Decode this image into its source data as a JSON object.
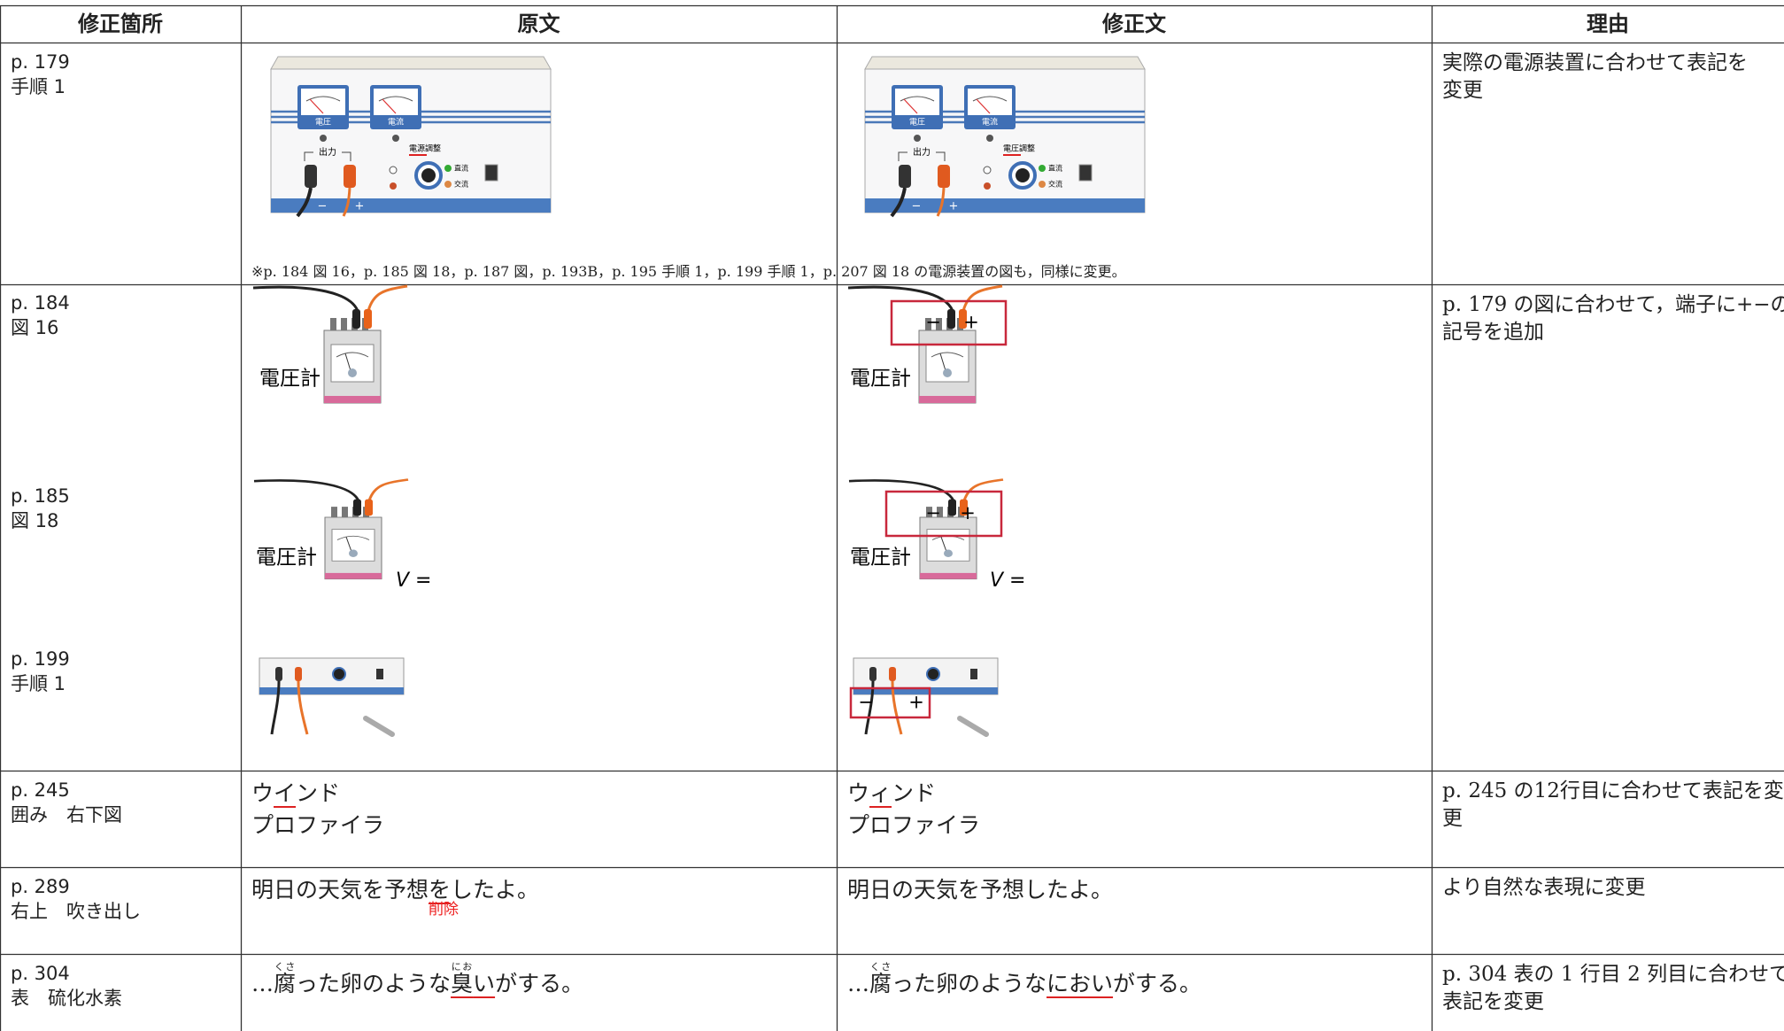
{
  "header": {
    "columns": [
      "修正箇所",
      "原文",
      "修正文",
      "理由"
    ]
  },
  "rows": [
    {
      "location": [
        "p. 179",
        "手順 1"
      ],
      "original": {
        "figure": {
          "meter_left": "電圧",
          "meter_right": "電流",
          "output": "出力",
          "knob": "電源調整",
          "dc": "直流",
          "ac": "交流",
          "minus": "−",
          "plus": "+"
        },
        "note": "※p. 184 図 16，p. 185 図 18，p. 187 図，p. 193B，p. 195 手順 1，p. 199 手順 1，p. 207 図 18 の電源装置の図も，同様に変更。"
      },
      "revised": {
        "figure": {
          "meter_left": "電圧",
          "meter_right": "電流",
          "output": "出力",
          "knob": "電圧調整",
          "dc": "直流",
          "ac": "交流",
          "minus": "−",
          "plus": "+"
        }
      },
      "reason": [
        "実際の電源装置に合わせて表記を",
        "変更"
      ]
    },
    {
      "items": [
        {
          "location": [
            "p. 184",
            "図 16"
          ],
          "original": {
            "label": "電圧計"
          },
          "revised": {
            "label": "電圧計",
            "marks": [
              "−",
              "+"
            ]
          }
        },
        {
          "location": [
            "p. 185",
            "図 18"
          ],
          "original": {
            "label": "電圧計",
            "formula": "V ="
          },
          "revised": {
            "label": "電圧計",
            "formula": "V =",
            "marks": [
              "−",
              "+"
            ]
          }
        },
        {
          "location": [
            "p. 199",
            "手順 1"
          ],
          "revised": {
            "marks": [
              "−",
              "+"
            ]
          }
        }
      ],
      "reason": [
        "p. 179 の図に合わせて，端子に+−の",
        "記号を追加"
      ]
    },
    {
      "location": [
        "p. 245",
        "囲み　右下図"
      ],
      "original": [
        [
          {
            "text": "ウ"
          },
          {
            "text": "イ",
            "mark": true
          },
          {
            "text": "ンド"
          }
        ],
        [
          {
            "text": "プロファイラ"
          }
        ]
      ],
      "revised": [
        [
          {
            "text": "ウ"
          },
          {
            "text": "ィ",
            "mark": true
          },
          {
            "text": "ンド"
          }
        ],
        [
          {
            "text": "プロファイラ"
          }
        ]
      ],
      "reason": [
        "p. 245 の12行目に合わせて表記を変",
        "更"
      ]
    },
    {
      "location": [
        "p. 289",
        "右上　吹き出し"
      ],
      "original": [
        [
          {
            "text": "明日の天気を予想"
          },
          {
            "text": "を",
            "mark": true,
            "note": "削除"
          },
          {
            "text": "したよ。"
          }
        ]
      ],
      "revised": [
        [
          {
            "text": "明日の天気を予想したよ。"
          }
        ]
      ],
      "reason": [
        "より自然な表現に変更"
      ]
    },
    {
      "location": [
        "p. 304",
        "表　硫化水素"
      ],
      "original": [
        [
          {
            "text": "…"
          },
          {
            "text": "腐",
            "ruby": "くさ"
          },
          {
            "text": "った卵のような"
          },
          {
            "text": "臭",
            "ruby": "にお",
            "mark": true
          },
          {
            "text": "い",
            "mark": true
          },
          {
            "text": "がする。"
          }
        ]
      ],
      "revised": [
        [
          {
            "text": "…"
          },
          {
            "text": "腐",
            "ruby": "くさ"
          },
          {
            "text": "った卵のような"
          },
          {
            "text": "におい",
            "mark": true
          },
          {
            "text": "がする。"
          }
        ]
      ],
      "reason": [
        "p. 304 表の 1 行目 2 列目に合わせて",
        "表記を変更"
      ]
    }
  ]
}
